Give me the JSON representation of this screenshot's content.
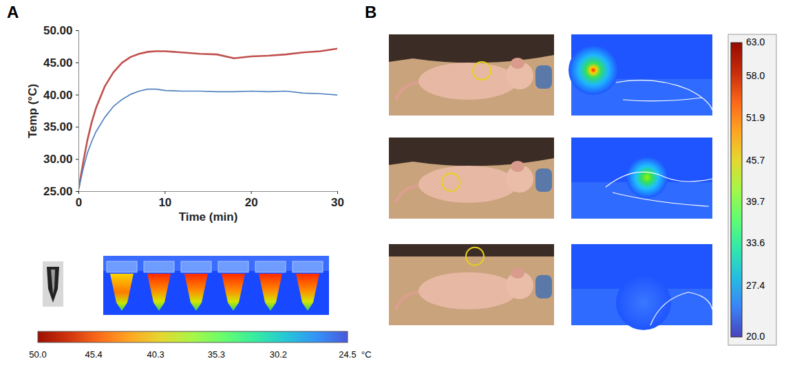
{
  "chart_data": {
    "type": "line",
    "x_label": "Time (min)",
    "y_label": "Temp (°C)",
    "x": [
      0,
      0.5,
      1,
      1.5,
      2,
      3,
      4,
      5,
      6,
      7,
      8,
      9,
      10,
      12,
      14,
      16,
      18,
      20,
      22,
      24,
      26,
      28,
      30
    ],
    "series": [
      {
        "color": "#c0504d",
        "values": [
          25.5,
          29.5,
          33,
          35.8,
          38,
          41.3,
          43.5,
          45,
          45.9,
          46.4,
          46.7,
          46.8,
          46.8,
          46.6,
          46.4,
          46.3,
          45.7,
          46.0,
          46.1,
          46.3,
          46.6,
          46.8,
          47.2
        ]
      },
      {
        "color": "#4f81bd",
        "values": [
          25.5,
          28.5,
          31,
          32.8,
          34.3,
          36.5,
          38.2,
          39.3,
          40.1,
          40.6,
          40.9,
          40.9,
          40.7,
          40.6,
          40.6,
          40.5,
          40.5,
          40.6,
          40.5,
          40.6,
          40.3,
          40.2,
          40.0
        ]
      }
    ],
    "xlim": [
      0,
      30
    ],
    "xticks": [
      0,
      10,
      20,
      30
    ],
    "ylim": [
      25,
      50
    ],
    "yticks": [
      {
        "value": 25,
        "label": "25.00"
      },
      {
        "value": 30,
        "label": "30.00"
      },
      {
        "value": 35,
        "label": "35.00"
      },
      {
        "value": 40,
        "label": "40.00"
      },
      {
        "value": 45,
        "label": "45.00"
      },
      {
        "value": 50,
        "label": "50.00"
      }
    ],
    "grid": false
  },
  "figure": {
    "panels": [
      {
        "label": "A",
        "colorbar": {
          "range": [
            50,
            24.5
          ],
          "ticks": [
            {
              "value": 50,
              "label": "50.0"
            },
            45.4,
            40.3,
            35.3,
            30.2,
            24.5
          ],
          "unit": "°C"
        }
      },
      {
        "label": "B",
        "colorbar": {
          "range": [
            63,
            20
          ],
          "ticks": [
            {
              "value": 63,
              "label": "63.0"
            },
            {
              "value": 58,
              "label": "58.0"
            },
            51.9,
            45.7,
            39.7,
            33.6,
            27.4,
            {
              "value": 20,
              "label": "20.0"
            }
          ]
        }
      }
    ]
  }
}
